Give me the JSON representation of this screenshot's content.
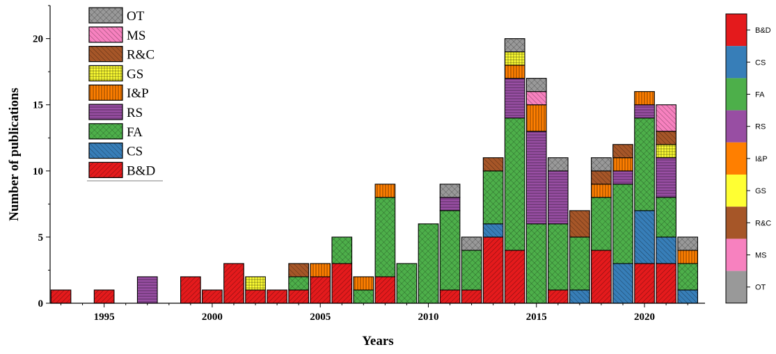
{
  "chart_data": {
    "type": "bar",
    "stacked": true,
    "xlabel": "Years",
    "ylabel": "Number of publications",
    "xlim": [
      1992.5,
      2022.8
    ],
    "ylim": [
      0,
      22.5
    ],
    "x_ticks": [
      1995,
      2000,
      2005,
      2010,
      2015,
      2020
    ],
    "y_ticks": [
      0,
      5,
      10,
      15,
      20
    ],
    "legend_position": "top-left",
    "colorbar_position": "right",
    "categories": [
      1993,
      1995,
      1997,
      1999,
      2000,
      2001,
      2002,
      2003,
      2004,
      2005,
      2006,
      2007,
      2008,
      2009,
      2010,
      2011,
      2012,
      2013,
      2014,
      2015,
      2016,
      2017,
      2018,
      2019,
      2020,
      2021,
      2022
    ],
    "series": [
      {
        "name": "B&D",
        "color": "#E41A1C",
        "values": [
          1,
          1,
          0,
          2,
          1,
          3,
          1,
          1,
          1,
          2,
          3,
          0,
          2,
          0,
          0,
          1,
          1,
          5,
          4,
          0,
          1,
          0,
          4,
          0,
          3,
          3,
          0
        ]
      },
      {
        "name": "CS",
        "color": "#377EB8",
        "values": [
          0,
          0,
          0,
          0,
          0,
          0,
          0,
          0,
          0,
          0,
          0,
          0,
          0,
          0,
          0,
          0,
          0,
          1,
          0,
          0,
          0,
          1,
          0,
          3,
          4,
          2,
          1
        ]
      },
      {
        "name": "FA",
        "color": "#4DAF4A",
        "values": [
          0,
          0,
          0,
          0,
          0,
          0,
          0,
          0,
          1,
          0,
          2,
          1,
          6,
          3,
          6,
          6,
          3,
          4,
          10,
          6,
          5,
          4,
          4,
          6,
          7,
          3,
          2
        ]
      },
      {
        "name": "RS",
        "color": "#984EA3",
        "values": [
          0,
          0,
          2,
          0,
          0,
          0,
          0,
          0,
          0,
          0,
          0,
          0,
          0,
          0,
          0,
          1,
          0,
          0,
          3,
          7,
          4,
          0,
          0,
          1,
          1,
          3,
          0
        ]
      },
      {
        "name": "I&P",
        "color": "#FF7F00",
        "values": [
          0,
          0,
          0,
          0,
          0,
          0,
          0,
          0,
          0,
          1,
          0,
          1,
          1,
          0,
          0,
          0,
          0,
          0,
          1,
          2,
          0,
          0,
          1,
          1,
          1,
          0,
          1
        ]
      },
      {
        "name": "GS",
        "color": "#FFFF33",
        "values": [
          0,
          0,
          0,
          0,
          0,
          0,
          1,
          0,
          0,
          0,
          0,
          0,
          0,
          0,
          0,
          0,
          0,
          0,
          1,
          0,
          0,
          0,
          0,
          0,
          0,
          1,
          0
        ]
      },
      {
        "name": "R&C",
        "color": "#A65628",
        "values": [
          0,
          0,
          0,
          0,
          0,
          0,
          0,
          0,
          1,
          0,
          0,
          0,
          0,
          0,
          0,
          0,
          0,
          1,
          0,
          0,
          0,
          2,
          1,
          1,
          0,
          1,
          0
        ]
      },
      {
        "name": "MS",
        "color": "#F781BF",
        "values": [
          0,
          0,
          0,
          0,
          0,
          0,
          0,
          0,
          0,
          0,
          0,
          0,
          0,
          0,
          0,
          0,
          0,
          0,
          0,
          1,
          0,
          0,
          0,
          0,
          0,
          2,
          0
        ]
      },
      {
        "name": "OT",
        "color": "#999999",
        "values": [
          0,
          0,
          0,
          0,
          0,
          0,
          0,
          0,
          0,
          0,
          0,
          0,
          0,
          0,
          0,
          1,
          1,
          0,
          1,
          1,
          1,
          0,
          1,
          0,
          0,
          0,
          1
        ]
      }
    ],
    "legend_order": [
      "OT",
      "MS",
      "R&C",
      "GS",
      "I&P",
      "RS",
      "FA",
      "CS",
      "B&D"
    ],
    "colorbar_order": [
      "B&D",
      "CS",
      "FA",
      "RS",
      "I&P",
      "GS",
      "R&C",
      "MS",
      "OT"
    ]
  }
}
